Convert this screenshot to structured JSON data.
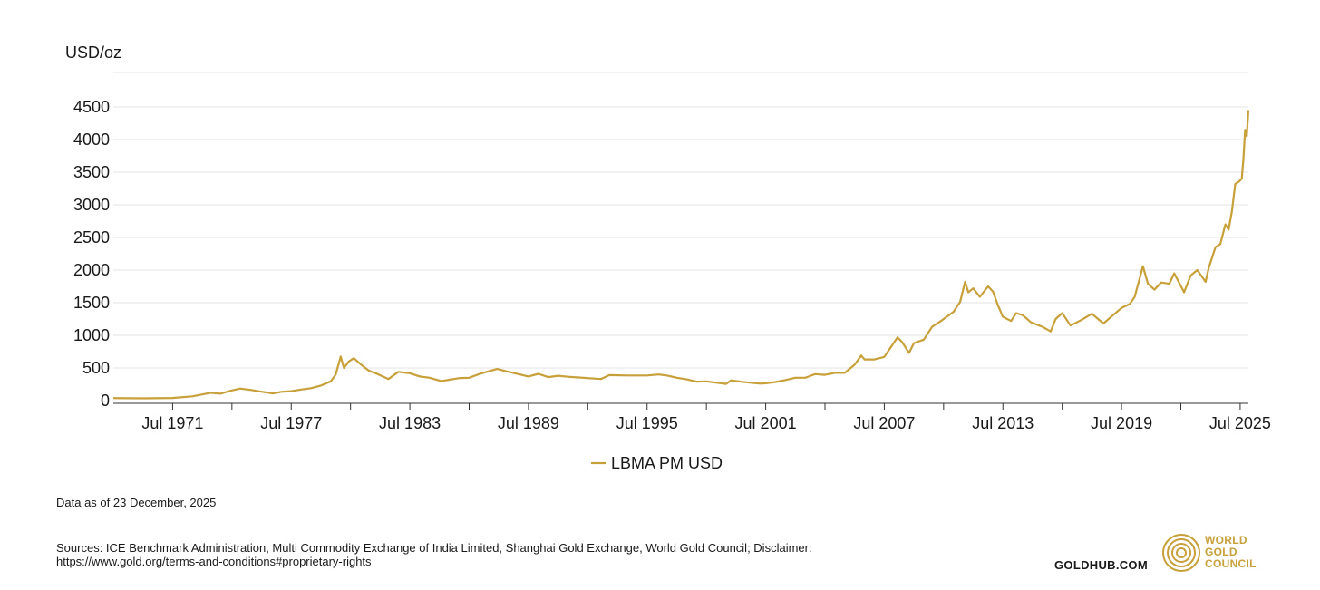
{
  "chart_data": {
    "type": "line",
    "ylabel": "USD/oz",
    "ylim": [
      0,
      4500
    ],
    "yticks": [
      0,
      500,
      1000,
      1500,
      2000,
      2500,
      3000,
      3500,
      4000,
      4500
    ],
    "xlim": [
      "1968-07",
      "2025-12"
    ],
    "xticks": [
      {
        "label": "Jul 1971",
        "date": "1971-07"
      },
      {
        "label": "Jul 1977",
        "date": "1977-07"
      },
      {
        "label": "Jul 1983",
        "date": "1983-07"
      },
      {
        "label": "Jul 1989",
        "date": "1989-07"
      },
      {
        "label": "Jul 1995",
        "date": "1995-07"
      },
      {
        "label": "Jul 2001",
        "date": "2001-07"
      },
      {
        "label": "Jul 2007",
        "date": "2007-07"
      },
      {
        "label": "Jul 2013",
        "date": "2013-07"
      },
      {
        "label": "Jul 2019",
        "date": "2019-07"
      },
      {
        "label": "Jul 2025",
        "date": "2025-07"
      }
    ],
    "grid": true,
    "legend": "bottom-center",
    "series": [
      {
        "name": "LBMA PM USD",
        "color": "#c8a03a",
        "points": [
          [
            "1968-07",
            39
          ],
          [
            "1970-01",
            35
          ],
          [
            "1971-07",
            40
          ],
          [
            "1972-07",
            65
          ],
          [
            "1973-06",
            120
          ],
          [
            "1973-12",
            106
          ],
          [
            "1974-06",
            150
          ],
          [
            "1974-12",
            185
          ],
          [
            "1975-06",
            165
          ],
          [
            "1975-12",
            140
          ],
          [
            "1976-08",
            110
          ],
          [
            "1977-01",
            135
          ],
          [
            "1977-07",
            145
          ],
          [
            "1978-01",
            170
          ],
          [
            "1978-07",
            190
          ],
          [
            "1979-01",
            230
          ],
          [
            "1979-07",
            295
          ],
          [
            "1979-10",
            400
          ],
          [
            "1980-01",
            675
          ],
          [
            "1980-03",
            500
          ],
          [
            "1980-06",
            600
          ],
          [
            "1980-09",
            650
          ],
          [
            "1981-01",
            560
          ],
          [
            "1981-06",
            460
          ],
          [
            "1981-12",
            400
          ],
          [
            "1982-06",
            330
          ],
          [
            "1982-12",
            440
          ],
          [
            "1983-03",
            430
          ],
          [
            "1983-07",
            420
          ],
          [
            "1984-01",
            370
          ],
          [
            "1984-07",
            350
          ],
          [
            "1985-02",
            300
          ],
          [
            "1985-07",
            320
          ],
          [
            "1986-01",
            345
          ],
          [
            "1986-07",
            350
          ],
          [
            "1987-01",
            405
          ],
          [
            "1987-07",
            450
          ],
          [
            "1987-12",
            485
          ],
          [
            "1988-07",
            440
          ],
          [
            "1989-01",
            405
          ],
          [
            "1989-07",
            370
          ],
          [
            "1990-01",
            410
          ],
          [
            "1990-07",
            360
          ],
          [
            "1991-01",
            380
          ],
          [
            "1991-07",
            365
          ],
          [
            "1992-07",
            345
          ],
          [
            "1993-03",
            330
          ],
          [
            "1993-08",
            390
          ],
          [
            "1994-07",
            385
          ],
          [
            "1995-07",
            385
          ],
          [
            "1996-02",
            400
          ],
          [
            "1996-07",
            385
          ],
          [
            "1997-01",
            350
          ],
          [
            "1997-07",
            325
          ],
          [
            "1998-01",
            290
          ],
          [
            "1998-07",
            295
          ],
          [
            "1999-07",
            255
          ],
          [
            "1999-10",
            310
          ],
          [
            "2000-07",
            280
          ],
          [
            "2001-04",
            260
          ],
          [
            "2001-07",
            265
          ],
          [
            "2002-01",
            285
          ],
          [
            "2002-07",
            315
          ],
          [
            "2003-01",
            350
          ],
          [
            "2003-07",
            350
          ],
          [
            "2004-01",
            405
          ],
          [
            "2004-07",
            395
          ],
          [
            "2005-01",
            425
          ],
          [
            "2005-07",
            425
          ],
          [
            "2006-01",
            550
          ],
          [
            "2006-05",
            690
          ],
          [
            "2006-07",
            630
          ],
          [
            "2007-01",
            630
          ],
          [
            "2007-07",
            670
          ],
          [
            "2008-03",
            970
          ],
          [
            "2008-06",
            890
          ],
          [
            "2008-10",
            730
          ],
          [
            "2009-01",
            880
          ],
          [
            "2009-07",
            935
          ],
          [
            "2009-12",
            1130
          ],
          [
            "2010-06",
            1230
          ],
          [
            "2011-01",
            1360
          ],
          [
            "2011-05",
            1510
          ],
          [
            "2011-08",
            1820
          ],
          [
            "2011-10",
            1660
          ],
          [
            "2012-01",
            1720
          ],
          [
            "2012-05",
            1590
          ],
          [
            "2012-10",
            1750
          ],
          [
            "2013-01",
            1670
          ],
          [
            "2013-04",
            1460
          ],
          [
            "2013-07",
            1285
          ],
          [
            "2013-12",
            1220
          ],
          [
            "2014-03",
            1340
          ],
          [
            "2014-07",
            1310
          ],
          [
            "2014-12",
            1200
          ],
          [
            "2015-07",
            1130
          ],
          [
            "2015-12",
            1060
          ],
          [
            "2016-03",
            1250
          ],
          [
            "2016-07",
            1340
          ],
          [
            "2016-12",
            1150
          ],
          [
            "2017-07",
            1240
          ],
          [
            "2018-01",
            1330
          ],
          [
            "2018-08",
            1180
          ],
          [
            "2019-01",
            1290
          ],
          [
            "2019-07",
            1420
          ],
          [
            "2019-12",
            1480
          ],
          [
            "2020-03",
            1590
          ],
          [
            "2020-08",
            2060
          ],
          [
            "2020-11",
            1790
          ],
          [
            "2021-03",
            1700
          ],
          [
            "2021-07",
            1810
          ],
          [
            "2021-12",
            1790
          ],
          [
            "2022-03",
            1950
          ],
          [
            "2022-09",
            1660
          ],
          [
            "2023-01",
            1920
          ],
          [
            "2023-05",
            2000
          ],
          [
            "2023-10",
            1820
          ],
          [
            "2023-12",
            2040
          ],
          [
            "2024-04",
            2350
          ],
          [
            "2024-07",
            2400
          ],
          [
            "2024-10",
            2700
          ],
          [
            "2024-12",
            2620
          ],
          [
            "2025-02",
            2900
          ],
          [
            "2025-04",
            3320
          ],
          [
            "2025-06",
            3350
          ],
          [
            "2025-08",
            3400
          ],
          [
            "2025-09",
            3700
          ],
          [
            "2025-10",
            4150
          ],
          [
            "2025-11",
            4050
          ],
          [
            "2025-12",
            4450
          ]
        ]
      }
    ]
  },
  "footer": {
    "data_as_of": "Data as of 23 December, 2025",
    "sources_line1": "Sources: ICE Benchmark Administration, Multi Commodity Exchange of India Limited, Shanghai Gold Exchange, World Gold Council; Disclaimer:",
    "sources_line2": "https://www.gold.org/terms-and-conditions#proprietary-rights",
    "goldhub": "GOLDHUB.COM",
    "wgc_line1": "WORLD",
    "wgc_line2": "GOLD",
    "wgc_line3": "COUNCIL",
    "brand_color": "#c8a03a"
  }
}
